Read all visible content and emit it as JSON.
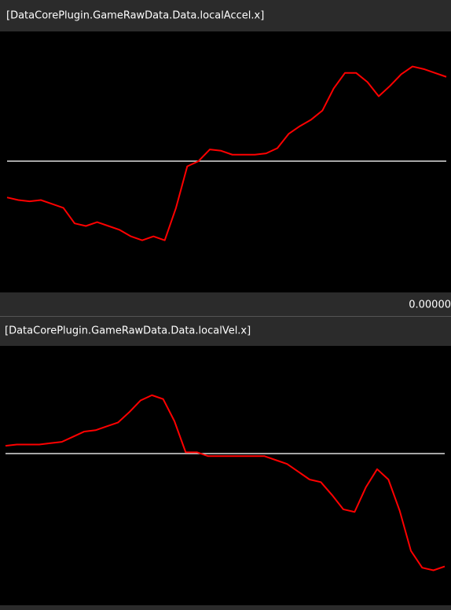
{
  "chart_data": [
    {
      "type": "line",
      "title": "[DataCorePlugin.GameRawData.Data.localAccel.x]",
      "readout": "0.00000",
      "ylim": [
        -1,
        1
      ],
      "hline": 0,
      "color": "#ff0000",
      "values": [
        -0.28,
        -0.3,
        -0.31,
        -0.3,
        -0.33,
        -0.36,
        -0.48,
        -0.5,
        -0.47,
        -0.5,
        -0.53,
        -0.58,
        -0.61,
        -0.58,
        -0.61,
        -0.36,
        -0.04,
        0,
        0.09,
        0.08,
        0.05,
        0.05,
        0.05,
        0.06,
        0.1,
        0.21,
        0.27,
        0.32,
        0.39,
        0.56,
        0.68,
        0.68,
        0.61,
        0.5,
        0.58,
        0.67,
        0.73,
        0.71,
        0.68,
        0.65
      ]
    },
    {
      "type": "line",
      "title": "[DataCorePlugin.GameRawData.Data.localVel.x]",
      "ylim": [
        -1,
        1
      ],
      "hline": 0,
      "color": "#ff0000",
      "values": [
        0.06,
        0.07,
        0.07,
        0.07,
        0.08,
        0.09,
        0.13,
        0.17,
        0.18,
        0.21,
        0.24,
        0.32,
        0.41,
        0.45,
        0.42,
        0.25,
        0.01,
        0.01,
        -0.02,
        -0.02,
        -0.02,
        -0.02,
        -0.02,
        -0.02,
        -0.05,
        -0.08,
        -0.14,
        -0.2,
        -0.22,
        -0.32,
        -0.43,
        -0.45,
        -0.26,
        -0.12,
        -0.2,
        -0.44,
        -0.75,
        -0.88,
        -0.9,
        -0.87
      ]
    }
  ]
}
